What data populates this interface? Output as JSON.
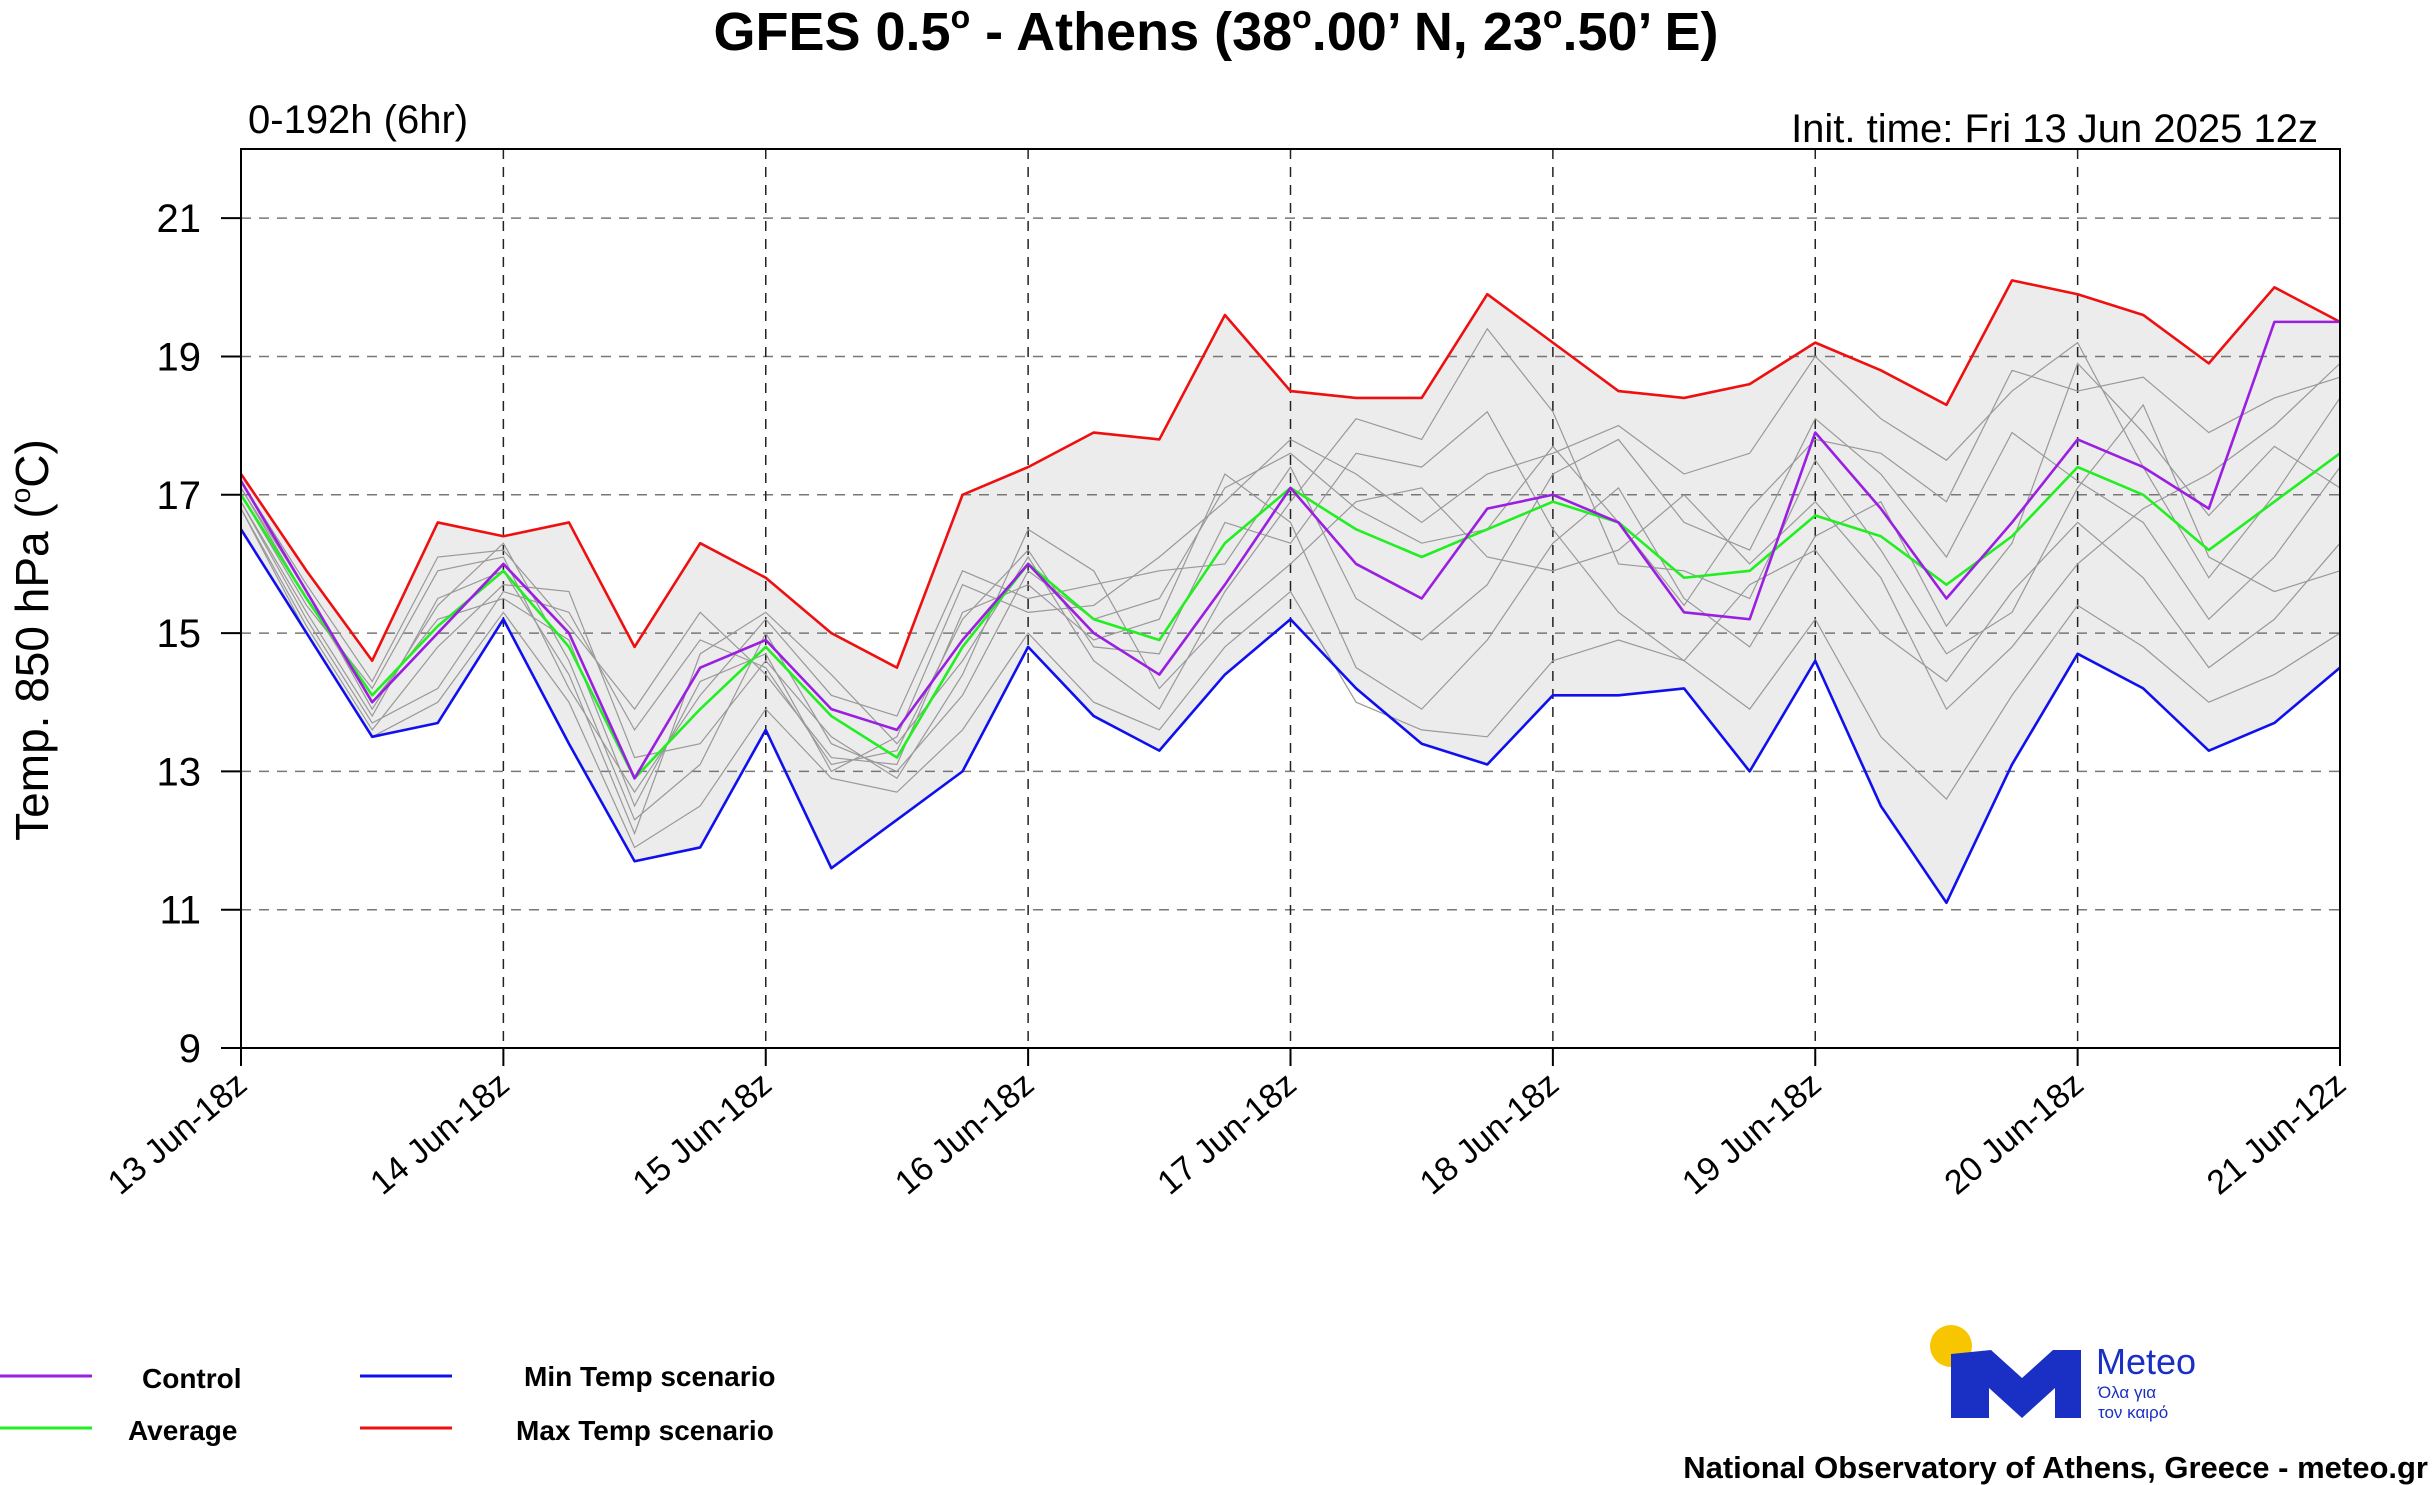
{
  "title": {
    "prefix": "GFES 0.5",
    "deg1": "o",
    "middle": " - Athens (38",
    "deg2": "o",
    "lat": ".00’ N, 23",
    "deg3": "o",
    "lon": ".50’ E)"
  },
  "subtitle_left": "0-192h (6hr)",
  "subtitle_right": "Init. time: Fri 13 Jun 2025 12z",
  "ylabel": {
    "text": "Temp. 850 hPa (",
    "deg": "o",
    "unit": "C)"
  },
  "legend": {
    "control": "Control",
    "average": "Average",
    "min": "Min Temp scenario",
    "max": "Max Temp scenario"
  },
  "footer": "National Observatory of Athens, Greece - meteo.gr",
  "logo": {
    "name": "Meteo",
    "tagline1": "Όλα για",
    "tagline2": "τον καιρό"
  },
  "colors": {
    "control": "#9a1fe0",
    "average": "#22ee22",
    "min": "#1010ee",
    "max": "#ee1010",
    "envelope": "#ececec",
    "members": "#999999",
    "logo_blue": "#1a2fc4",
    "logo_sun": "#f7c600"
  },
  "chart_data": {
    "type": "line",
    "xlabel": "",
    "ylabel": "Temp. 850 hPa (oC)",
    "ylim": [
      9,
      22
    ],
    "yticks": [
      9,
      11,
      13,
      15,
      17,
      19,
      21
    ],
    "xtick_labels": [
      "13 Jun-18z",
      "14 Jun-18z",
      "15 Jun-18z",
      "16 Jun-18z",
      "17 Jun-18z",
      "18 Jun-18z",
      "19 Jun-18z",
      "20 Jun-18z",
      "21 Jun-12z"
    ],
    "x_start": "13 Jun 18z",
    "x_step_hours": 6,
    "grid": true,
    "series": [
      {
        "name": "Max Temp scenario",
        "key": "max",
        "values": [
          17.3,
          15.9,
          14.6,
          16.6,
          16.4,
          16.6,
          14.8,
          16.3,
          15.8,
          15.0,
          14.5,
          17.0,
          17.4,
          17.9,
          17.8,
          19.6,
          18.5,
          18.4,
          18.4,
          19.9,
          19.2,
          18.5,
          18.4,
          18.6,
          19.2,
          18.8,
          18.3,
          20.1,
          19.9,
          19.6,
          18.9,
          20.0,
          19.5
        ]
      },
      {
        "name": "Min Temp scenario",
        "key": "min",
        "values": [
          16.5,
          15.0,
          13.5,
          13.7,
          15.2,
          13.4,
          11.7,
          11.9,
          13.6,
          11.6,
          12.3,
          13.0,
          14.8,
          13.8,
          13.3,
          14.4,
          15.2,
          14.2,
          13.4,
          13.1,
          14.1,
          14.1,
          14.2,
          13.0,
          14.6,
          12.5,
          11.1,
          13.1,
          14.7,
          14.2,
          13.3,
          13.7,
          14.5
        ]
      },
      {
        "name": "Control",
        "key": "control",
        "values": [
          17.2,
          15.6,
          14.0,
          15.0,
          16.0,
          15.0,
          12.9,
          14.5,
          14.9,
          13.9,
          13.6,
          14.9,
          16.0,
          15.0,
          14.4,
          15.7,
          17.1,
          16.0,
          15.5,
          16.8,
          17.0,
          16.6,
          15.3,
          15.2,
          17.9,
          16.8,
          15.5,
          16.6,
          17.8,
          17.4,
          16.8,
          19.5,
          19.5
        ]
      },
      {
        "name": "Average",
        "key": "average",
        "values": [
          17.0,
          15.5,
          14.1,
          15.1,
          15.9,
          14.8,
          12.9,
          13.9,
          14.8,
          13.8,
          13.2,
          14.8,
          16.0,
          15.2,
          14.9,
          16.3,
          17.1,
          16.5,
          16.1,
          16.5,
          16.9,
          16.6,
          15.8,
          15.9,
          16.7,
          16.4,
          15.7,
          16.4,
          17.4,
          17.0,
          16.2,
          16.9,
          17.6
        ]
      }
    ],
    "members": [
      [
        17.1,
        15.6,
        13.9,
        15.4,
        16.3,
        14.6,
        12.3,
        13.1,
        15.0,
        13.4,
        13.0,
        14.1,
        15.9,
        15.2,
        15.5,
        17.1,
        17.6,
        16.8,
        16.3,
        16.5,
        17.7,
        16.6,
        15.4,
        16.8,
        17.8,
        17.6,
        16.9,
        18.8,
        18.5,
        18.7,
        17.9,
        18.4,
        18.7
      ],
      [
        16.9,
        15.2,
        13.7,
        14.2,
        15.6,
        15.3,
        13.6,
        14.9,
        14.5,
        13.1,
        13.3,
        15.2,
        16.2,
        14.8,
        14.7,
        16.6,
        16.3,
        17.6,
        17.4,
        18.2,
        16.5,
        15.3,
        14.6,
        15.7,
        16.2,
        15.0,
        14.3,
        15.6,
        16.6,
        15.8,
        14.5,
        15.2,
        16.3
      ],
      [
        17.0,
        15.4,
        14.2,
        15.9,
        16.1,
        14.2,
        12.7,
        14.1,
        15.2,
        14.1,
        13.8,
        15.9,
        15.5,
        15.7,
        15.9,
        16.0,
        17.4,
        15.5,
        14.9,
        15.7,
        17.3,
        17.8,
        16.6,
        16.2,
        18.1,
        17.3,
        16.1,
        17.9,
        17.2,
        16.6,
        15.2,
        16.1,
        17.4
      ],
      [
        16.8,
        15.1,
        13.6,
        14.8,
        15.7,
        15.6,
        13.2,
        13.4,
        14.6,
        13.5,
        12.9,
        14.4,
        16.5,
        15.9,
        14.2,
        15.2,
        16.0,
        16.9,
        17.1,
        16.1,
        15.9,
        16.2,
        17.0,
        16.0,
        16.9,
        15.8,
        13.9,
        14.8,
        16.0,
        16.8,
        17.3,
        18.0,
        18.9
      ],
      [
        17.2,
        15.7,
        14.3,
        16.1,
        16.2,
        15.1,
        13.9,
        15.3,
        14.4,
        13.2,
        13.1,
        15.3,
        15.7,
        14.9,
        15.2,
        17.3,
        16.6,
        14.5,
        13.9,
        14.9,
        16.3,
        17.1,
        15.5,
        14.8,
        16.4,
        16.9,
        15.1,
        16.3,
        18.9,
        17.9,
        16.7,
        17.7,
        17.1
      ],
      [
        16.9,
        15.3,
        13.8,
        15.5,
        15.9,
        14.4,
        12.1,
        14.7,
        15.3,
        14.4,
        13.4,
        14.6,
        16.1,
        14.6,
        13.9,
        15.6,
        16.9,
        18.1,
        17.8,
        19.4,
        18.2,
        16.0,
        15.9,
        15.5,
        17.5,
        16.2,
        14.7,
        15.3,
        17.1,
        18.3,
        16.1,
        15.6,
        15.9
      ],
      [
        17.1,
        15.5,
        14.0,
        15.2,
        15.5,
        14.9,
        12.5,
        14.3,
        14.7,
        13.0,
        13.5,
        15.7,
        15.3,
        15.4,
        16.1,
        16.9,
        17.8,
        17.3,
        16.6,
        17.3,
        17.6,
        18.0,
        17.3,
        17.6,
        19.0,
        18.1,
        17.5,
        18.5,
        19.2,
        17.4,
        15.8,
        17.0,
        18.4
      ],
      [
        16.8,
        15.0,
        13.5,
        14.0,
        15.3,
        14.0,
        11.9,
        12.5,
        13.9,
        12.9,
        12.7,
        13.6,
        15.0,
        14.0,
        13.6,
        14.8,
        15.6,
        14.0,
        13.6,
        13.5,
        14.6,
        14.9,
        14.6,
        13.9,
        15.2,
        13.5,
        12.6,
        14.1,
        15.4,
        14.8,
        14.0,
        14.4,
        15.0
      ]
    ]
  }
}
